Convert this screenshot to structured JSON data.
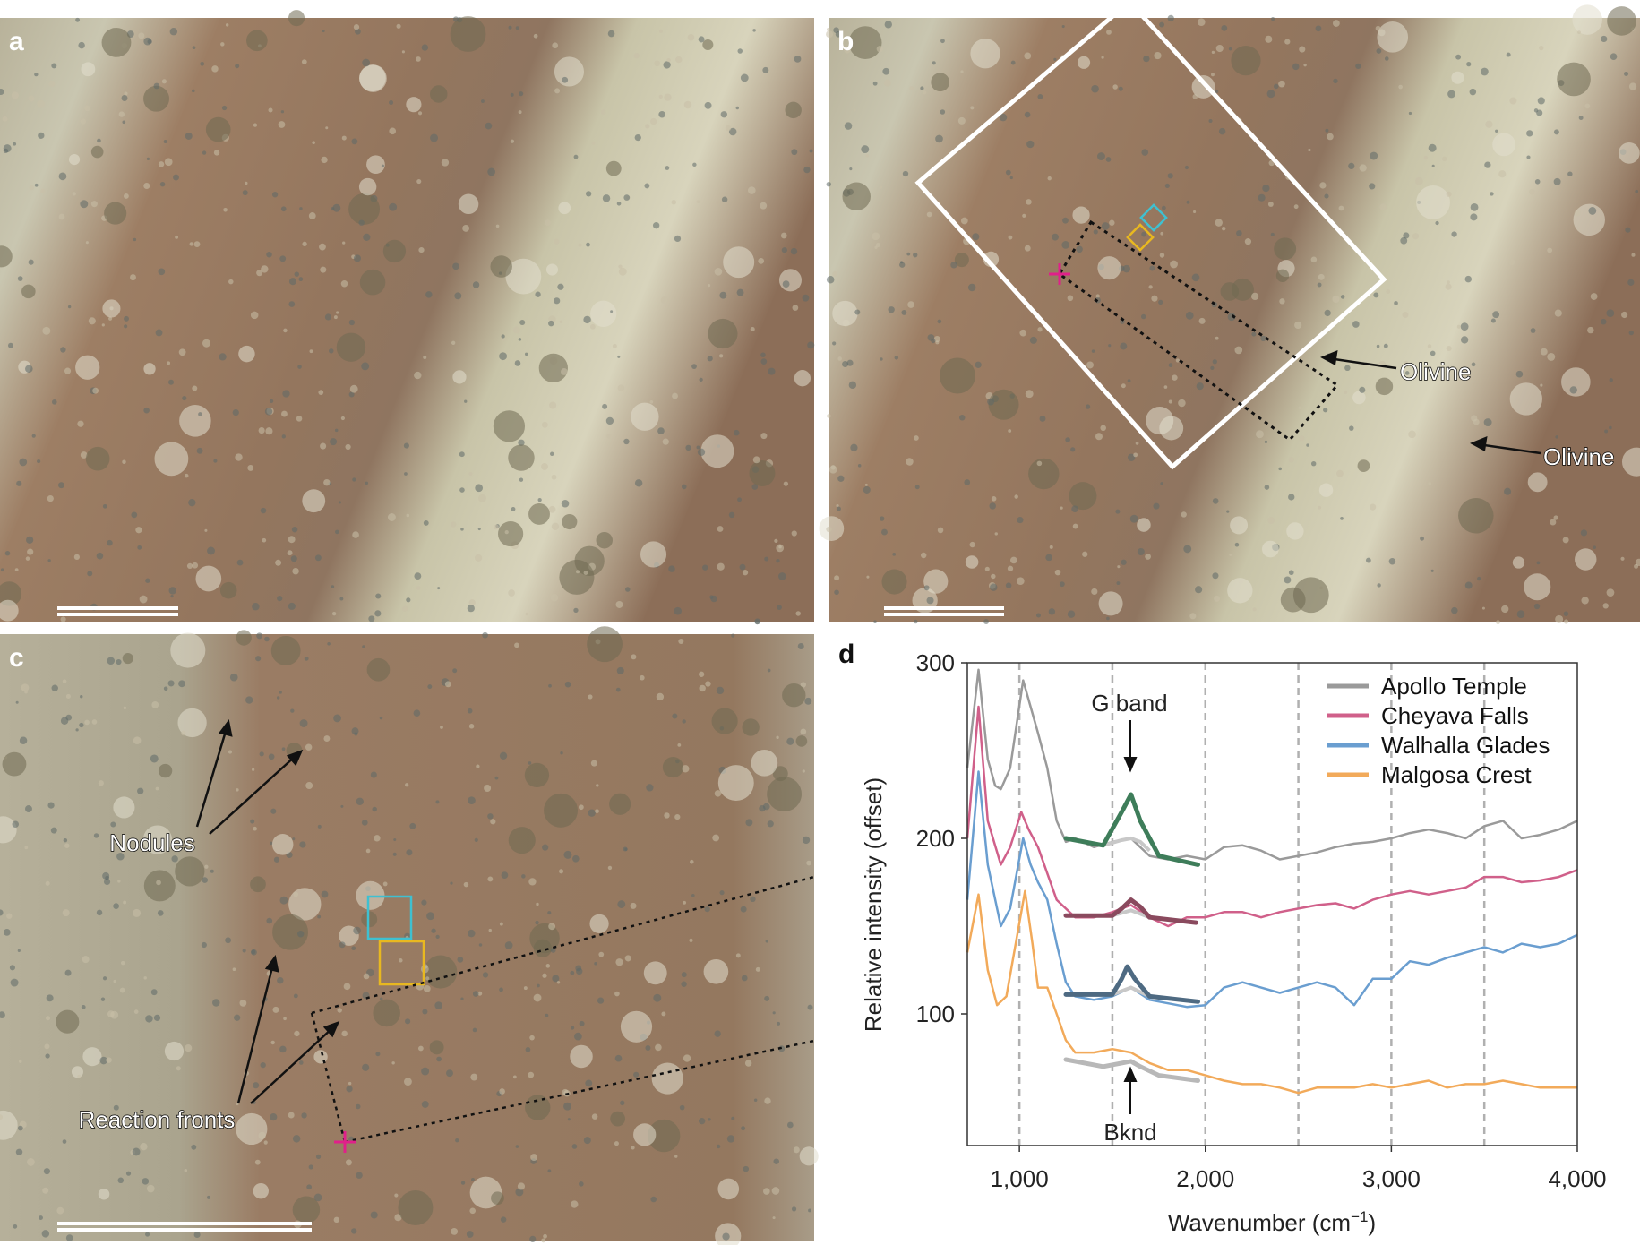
{
  "panels": {
    "a": {
      "label": "a"
    },
    "b": {
      "label": "b",
      "annotations": [
        "Olivine",
        "Olivine"
      ]
    },
    "c": {
      "label": "c",
      "annotations": {
        "nodules": "Nodules",
        "reaction_fronts": "Reaction fronts"
      }
    },
    "d": {
      "label": "d"
    }
  },
  "colors": {
    "white_box": "#ffffff",
    "cyan_box": "#3fc0d0",
    "yellow_box": "#e8b820",
    "cross": "#e0208a",
    "rock_matrix": "#9a7a60",
    "rock_light": "#d8d4c0"
  },
  "chart_data": {
    "type": "line",
    "xlabel": "Wavenumber (cm",
    "xlabel_sup": "−1",
    "xlabel_end": ")",
    "ylabel": "Relative intensity (offset)",
    "xlim": [
      720,
      4000
    ],
    "ylim": [
      25,
      300
    ],
    "xticks": [
      1000,
      2000,
      3000,
      4000
    ],
    "xtick_labels": [
      "1,000",
      "2,000",
      "3,000",
      "4,000"
    ],
    "yticks": [
      100,
      200,
      300
    ],
    "ytick_labels": [
      "100",
      "200",
      "300"
    ],
    "vertical_dashed_lines": [
      1000,
      1500,
      2000,
      2500,
      3000,
      3500
    ],
    "legend_placement": "top-right",
    "annotations": {
      "g_band": "G band",
      "bknd": "Bknd"
    },
    "series": [
      {
        "name": "Apollo Temple",
        "color": "#9a9a9a",
        "x": [
          720,
          780,
          830,
          870,
          900,
          950,
          1020,
          1060,
          1100,
          1150,
          1200,
          1250,
          1300,
          1400,
          1500,
          1600,
          1700,
          1800,
          1900,
          2000,
          2100,
          2200,
          2300,
          2400,
          2500,
          2600,
          2700,
          2800,
          2900,
          3000,
          3100,
          3200,
          3300,
          3400,
          3500,
          3600,
          3700,
          3800,
          3900,
          4000
        ],
        "y": [
          240,
          296,
          245,
          230,
          228,
          240,
          290,
          275,
          260,
          240,
          210,
          198,
          200,
          195,
          198,
          200,
          190,
          188,
          190,
          188,
          195,
          196,
          193,
          188,
          190,
          192,
          195,
          197,
          198,
          200,
          203,
          205,
          203,
          200,
          207,
          210,
          200,
          202,
          205,
          210
        ]
      },
      {
        "name": "Cheyava Falls",
        "color": "#d0608a",
        "x": [
          720,
          780,
          830,
          900,
          950,
          1010,
          1050,
          1100,
          1150,
          1200,
          1300,
          1400,
          1500,
          1600,
          1700,
          1800,
          1900,
          2000,
          2100,
          2200,
          2300,
          2400,
          2500,
          2600,
          2700,
          2800,
          2900,
          3000,
          3100,
          3200,
          3300,
          3400,
          3500,
          3600,
          3700,
          3800,
          3900,
          4000
        ],
        "y": [
          200,
          275,
          210,
          185,
          195,
          215,
          205,
          195,
          180,
          165,
          155,
          155,
          158,
          162,
          155,
          150,
          155,
          155,
          158,
          158,
          155,
          158,
          160,
          162,
          163,
          160,
          165,
          168,
          170,
          168,
          170,
          172,
          178,
          178,
          175,
          176,
          178,
          182
        ]
      },
      {
        "name": "Walhalla Glades",
        "color": "#6a9ed0",
        "x": [
          720,
          780,
          830,
          900,
          950,
          1020,
          1060,
          1100,
          1150,
          1200,
          1250,
          1300,
          1400,
          1500,
          1600,
          1700,
          1800,
          1900,
          2000,
          2100,
          2200,
          2300,
          2400,
          2500,
          2600,
          2700,
          2800,
          2900,
          3000,
          3100,
          3200,
          3300,
          3400,
          3500,
          3600,
          3700,
          3800,
          3900,
          4000
        ],
        "y": [
          165,
          238,
          185,
          150,
          160,
          200,
          185,
          175,
          165,
          140,
          118,
          110,
          108,
          110,
          115,
          108,
          106,
          104,
          105,
          115,
          118,
          115,
          112,
          115,
          118,
          115,
          105,
          120,
          120,
          130,
          128,
          132,
          135,
          138,
          135,
          140,
          138,
          140,
          145
        ]
      },
      {
        "name": "Malgosa Crest",
        "color": "#f2aa5a",
        "x": [
          720,
          780,
          830,
          880,
          930,
          1030,
          1070,
          1100,
          1150,
          1200,
          1250,
          1300,
          1400,
          1500,
          1600,
          1700,
          1800,
          1900,
          2000,
          2100,
          2200,
          2300,
          2400,
          2500,
          2600,
          2700,
          2800,
          2900,
          3000,
          3100,
          3200,
          3300,
          3400,
          3500,
          3600,
          3700,
          3800,
          3900,
          4000
        ],
        "y": [
          135,
          168,
          125,
          105,
          110,
          170,
          140,
          115,
          115,
          100,
          85,
          78,
          78,
          80,
          78,
          72,
          68,
          68,
          65,
          62,
          60,
          60,
          58,
          55,
          58,
          58,
          58,
          60,
          58,
          60,
          62,
          58,
          60,
          60,
          62,
          60,
          58,
          58,
          58
        ]
      }
    ],
    "fits": [
      {
        "of": "Apollo Temple",
        "color": "#3e7d5a",
        "x": [
          1250,
          1450,
          1550,
          1600,
          1650,
          1750,
          1960
        ],
        "y": [
          200,
          196,
          215,
          225,
          210,
          190,
          185
        ],
        "background": {
          "x": [
            1450,
            1550,
            1600,
            1650,
            1700
          ],
          "y": [
            196,
            199,
            200,
            198,
            193
          ]
        }
      },
      {
        "of": "Cheyava Falls",
        "color": "#8a4a5e",
        "x": [
          1250,
          1500,
          1550,
          1600,
          1650,
          1700,
          1950
        ],
        "y": [
          156,
          156,
          160,
          165,
          161,
          155,
          152
        ],
        "background": {
          "x": [
            1500,
            1600,
            1700
          ],
          "y": [
            156,
            159,
            155
          ]
        }
      },
      {
        "of": "Walhalla Glades",
        "color": "#4e6a82",
        "x": [
          1250,
          1500,
          1550,
          1580,
          1620,
          1700,
          1960
        ],
        "y": [
          111,
          111,
          120,
          127,
          120,
          110,
          107
        ],
        "background": {
          "x": [
            1500,
            1600,
            1700
          ],
          "y": [
            111,
            115,
            110
          ]
        }
      },
      {
        "of": "Malgosa Crest",
        "color": "#b8b8b8",
        "x": [
          1250,
          1450,
          1550,
          1600,
          1650,
          1750,
          1960
        ],
        "y": [
          74,
          70,
          72,
          73,
          70,
          65,
          62
        ]
      }
    ]
  }
}
